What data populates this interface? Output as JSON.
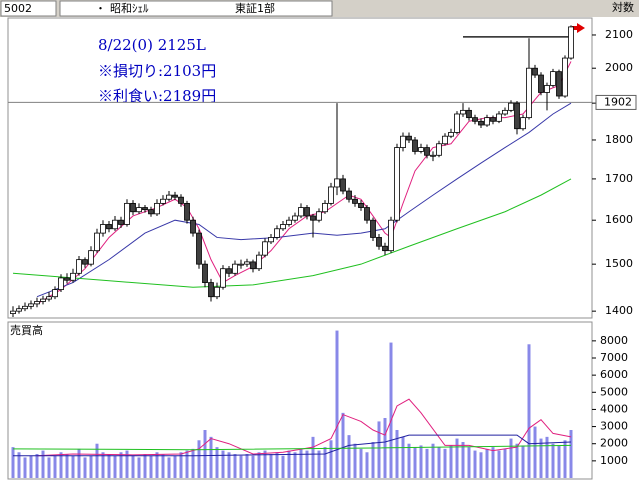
{
  "header": {
    "code": "5002",
    "dot": "・",
    "name": "昭和ｼｪﾙ",
    "market": "東証1部",
    "scale": "対数"
  },
  "chart_data": [
    {
      "type": "candlestick",
      "log": true,
      "ylim": [
        1386,
        2153
      ],
      "yticks": [
        1400,
        1500,
        1600,
        1700,
        1800,
        1900,
        2000,
        2100
      ],
      "annotations": [
        "8/22(0) 2125L",
        "※損切り:2103円",
        "※利食い:2189円"
      ],
      "ref_line": {
        "value": 1902,
        "label": "1902",
        "color": "#808080"
      },
      "hline": {
        "value": 2094,
        "x": [
          75,
          93
        ],
        "color": "#202020"
      },
      "up_color": "#ffffff",
      "down_color": "#404040",
      "candles": [
        [
          1395,
          1410,
          1388,
          1400
        ],
        [
          1400,
          1412,
          1395,
          1405
        ],
        [
          1405,
          1418,
          1400,
          1410
        ],
        [
          1410,
          1422,
          1404,
          1415
        ],
        [
          1415,
          1428,
          1408,
          1420
        ],
        [
          1420,
          1432,
          1414,
          1425
        ],
        [
          1425,
          1440,
          1420,
          1430
        ],
        [
          1430,
          1452,
          1425,
          1445
        ],
        [
          1445,
          1478,
          1440,
          1470
        ],
        [
          1470,
          1480,
          1458,
          1465
        ],
        [
          1465,
          1490,
          1460,
          1480
        ],
        [
          1480,
          1518,
          1475,
          1510
        ],
        [
          1510,
          1515,
          1492,
          1500
        ],
        [
          1500,
          1540,
          1495,
          1530
        ],
        [
          1530,
          1580,
          1525,
          1570
        ],
        [
          1570,
          1600,
          1562,
          1590
        ],
        [
          1590,
          1598,
          1572,
          1580
        ],
        [
          1580,
          1610,
          1575,
          1600
        ],
        [
          1600,
          1608,
          1582,
          1590
        ],
        [
          1590,
          1650,
          1585,
          1640
        ],
        [
          1640,
          1648,
          1612,
          1620
        ],
        [
          1620,
          1640,
          1615,
          1630
        ],
        [
          1630,
          1636,
          1618,
          1625
        ],
        [
          1625,
          1632,
          1608,
          1615
        ],
        [
          1615,
          1650,
          1610,
          1640
        ],
        [
          1640,
          1660,
          1635,
          1650
        ],
        [
          1650,
          1670,
          1645,
          1660
        ],
        [
          1660,
          1668,
          1648,
          1655
        ],
        [
          1655,
          1662,
          1632,
          1640
        ],
        [
          1640,
          1646,
          1592,
          1600
        ],
        [
          1600,
          1608,
          1562,
          1570
        ],
        [
          1570,
          1578,
          1490,
          1500
        ],
        [
          1500,
          1508,
          1450,
          1460
        ],
        [
          1460,
          1468,
          1420,
          1430
        ],
        [
          1430,
          1460,
          1425,
          1450
        ],
        [
          1450,
          1498,
          1445,
          1490
        ],
        [
          1490,
          1496,
          1472,
          1480
        ],
        [
          1480,
          1508,
          1475,
          1500
        ],
        [
          1500,
          1510,
          1490,
          1500
        ],
        [
          1500,
          1512,
          1494,
          1505
        ],
        [
          1505,
          1510,
          1482,
          1490
        ],
        [
          1490,
          1528,
          1485,
          1520
        ],
        [
          1520,
          1558,
          1515,
          1550
        ],
        [
          1550,
          1568,
          1545,
          1560
        ],
        [
          1560,
          1588,
          1555,
          1580
        ],
        [
          1580,
          1598,
          1575,
          1590
        ],
        [
          1590,
          1608,
          1585,
          1600
        ],
        [
          1600,
          1618,
          1594,
          1610
        ],
        [
          1610,
          1640,
          1605,
          1630
        ],
        [
          1630,
          1636,
          1602,
          1610
        ],
        [
          1610,
          1615,
          1560,
          1600
        ],
        [
          1600,
          1628,
          1595,
          1620
        ],
        [
          1620,
          1648,
          1615,
          1640
        ],
        [
          1640,
          1690,
          1635,
          1680
        ],
        [
          1680,
          1900,
          1660,
          1700
        ],
        [
          1700,
          1710,
          1662,
          1670
        ],
        [
          1670,
          1678,
          1642,
          1650
        ],
        [
          1650,
          1660,
          1632,
          1640
        ],
        [
          1640,
          1648,
          1622,
          1630
        ],
        [
          1630,
          1636,
          1592,
          1600
        ],
        [
          1600,
          1606,
          1552,
          1560
        ],
        [
          1560,
          1568,
          1532,
          1540
        ],
        [
          1540,
          1548,
          1520,
          1530
        ],
        [
          1530,
          1608,
          1525,
          1600
        ],
        [
          1600,
          1790,
          1595,
          1780
        ],
        [
          1780,
          1820,
          1770,
          1810
        ],
        [
          1810,
          1820,
          1792,
          1800
        ],
        [
          1800,
          1808,
          1762,
          1770
        ],
        [
          1770,
          1790,
          1765,
          1780
        ],
        [
          1780,
          1788,
          1752,
          1760
        ],
        [
          1760,
          1770,
          1745,
          1760
        ],
        [
          1760,
          1798,
          1755,
          1790
        ],
        [
          1790,
          1818,
          1785,
          1810
        ],
        [
          1810,
          1830,
          1805,
          1820
        ],
        [
          1820,
          1878,
          1815,
          1870
        ],
        [
          1870,
          1900,
          1862,
          1880
        ],
        [
          1880,
          1888,
          1852,
          1860
        ],
        [
          1860,
          1868,
          1842,
          1850
        ],
        [
          1850,
          1858,
          1832,
          1840
        ],
        [
          1840,
          1868,
          1835,
          1860
        ],
        [
          1860,
          1866,
          1842,
          1850
        ],
        [
          1850,
          1878,
          1845,
          1870
        ],
        [
          1870,
          1888,
          1865,
          1880
        ],
        [
          1880,
          1908,
          1875,
          1900
        ],
        [
          1900,
          1906,
          1815,
          1830
        ],
        [
          1830,
          1868,
          1825,
          1860
        ],
        [
          1860,
          2090,
          1855,
          2000
        ],
        [
          2000,
          2010,
          1972,
          1980
        ],
        [
          1980,
          1988,
          1922,
          1930
        ],
        [
          1930,
          1958,
          1880,
          1950
        ],
        [
          1950,
          1998,
          1945,
          1990
        ],
        [
          1990,
          1996,
          1912,
          1920
        ],
        [
          1920,
          2038,
          1915,
          2030
        ],
        [
          2030,
          2130,
          2025,
          2125
        ]
      ],
      "series": [
        {
          "color": "#e0207f",
          "x": [
            4,
            8,
            12,
            16,
            20,
            24,
            27,
            29,
            31,
            33,
            35,
            37,
            40,
            43,
            46,
            49,
            52,
            54,
            56,
            58,
            60,
            62,
            63,
            65,
            67,
            70,
            73,
            76,
            79,
            82,
            85,
            88,
            91,
            93
          ],
          "values": [
            1415,
            1445,
            1490,
            1560,
            1610,
            1630,
            1650,
            1630,
            1580,
            1510,
            1460,
            1475,
            1495,
            1530,
            1580,
            1610,
            1620,
            1640,
            1660,
            1650,
            1610,
            1570,
            1560,
            1640,
            1720,
            1780,
            1790,
            1850,
            1860,
            1860,
            1870,
            1930,
            1950,
            2020
          ]
        },
        {
          "color": "#3838a8",
          "x": [
            4,
            10,
            16,
            22,
            27,
            31,
            34,
            38,
            44,
            50,
            54,
            58,
            62,
            66,
            70,
            74,
            78,
            82,
            86,
            90,
            93
          ],
          "values": [
            1430,
            1460,
            1510,
            1570,
            1600,
            1590,
            1560,
            1555,
            1560,
            1570,
            1565,
            1570,
            1580,
            1620,
            1660,
            1700,
            1740,
            1780,
            1820,
            1870,
            1900
          ]
        },
        {
          "color": "#20c020",
          "x": [
            0,
            15,
            30,
            40,
            50,
            58,
            66,
            74,
            82,
            88,
            93
          ],
          "values": [
            1480,
            1465,
            1450,
            1455,
            1475,
            1500,
            1540,
            1580,
            1620,
            1660,
            1700
          ]
        }
      ]
    },
    {
      "type": "bar",
      "title": "売買高",
      "color": "#8888e8",
      "ylim": [
        0,
        9100
      ],
      "yticks": [
        1000,
        2000,
        3000,
        4000,
        5000,
        6000,
        7000,
        8000
      ],
      "values": [
        1800,
        1500,
        1200,
        1300,
        1400,
        1600,
        1200,
        1300,
        1500,
        1400,
        1300,
        1700,
        1200,
        1300,
        2000,
        1500,
        1400,
        1300,
        1500,
        1600,
        1300,
        1200,
        1400,
        1300,
        1500,
        1400,
        1200,
        1300,
        1500,
        1600,
        1700,
        2200,
        2800,
        2400,
        1800,
        1600,
        1500,
        1400,
        1300,
        1400,
        1300,
        1500,
        1600,
        1400,
        1500,
        1300,
        1600,
        1500,
        1700,
        1600,
        2400,
        1600,
        1800,
        2200,
        8600,
        3800,
        2500,
        2000,
        1700,
        1500,
        2100,
        3300,
        3500,
        7900,
        2800,
        2400,
        2000,
        1800,
        1900,
        1700,
        2000,
        1800,
        1700,
        1900,
        2300,
        2100,
        1800,
        1600,
        1500,
        1700,
        1800,
        1600,
        1700,
        2300,
        2000,
        1900,
        7800,
        3000,
        2300,
        2400,
        2000,
        1900,
        2200,
        2800
      ],
      "series": [
        {
          "color": "#e0207f",
          "x": [
            4,
            10,
            20,
            28,
            31,
            33,
            36,
            40,
            45,
            50,
            53,
            55,
            58,
            60,
            62,
            64,
            66,
            68,
            72,
            76,
            80,
            84,
            86,
            88,
            90,
            93
          ],
          "values": [
            1300,
            1400,
            1350,
            1400,
            1700,
            2300,
            2000,
            1400,
            1500,
            1800,
            2300,
            3700,
            3300,
            2800,
            2500,
            4200,
            4600,
            3800,
            1900,
            1900,
            1600,
            1800,
            2900,
            3400,
            2600,
            2400
          ]
        },
        {
          "color": "#2020a0",
          "x": [
            0,
            30,
            52,
            56,
            62,
            66,
            70,
            84,
            86,
            93
          ],
          "values": [
            1300,
            1300,
            1400,
            1900,
            2100,
            2500,
            2500,
            2500,
            2000,
            2100
          ]
        },
        {
          "color": "#20c020",
          "x": [
            0,
            30,
            60,
            93
          ],
          "values": [
            1700,
            1650,
            1750,
            1900
          ]
        }
      ]
    }
  ]
}
